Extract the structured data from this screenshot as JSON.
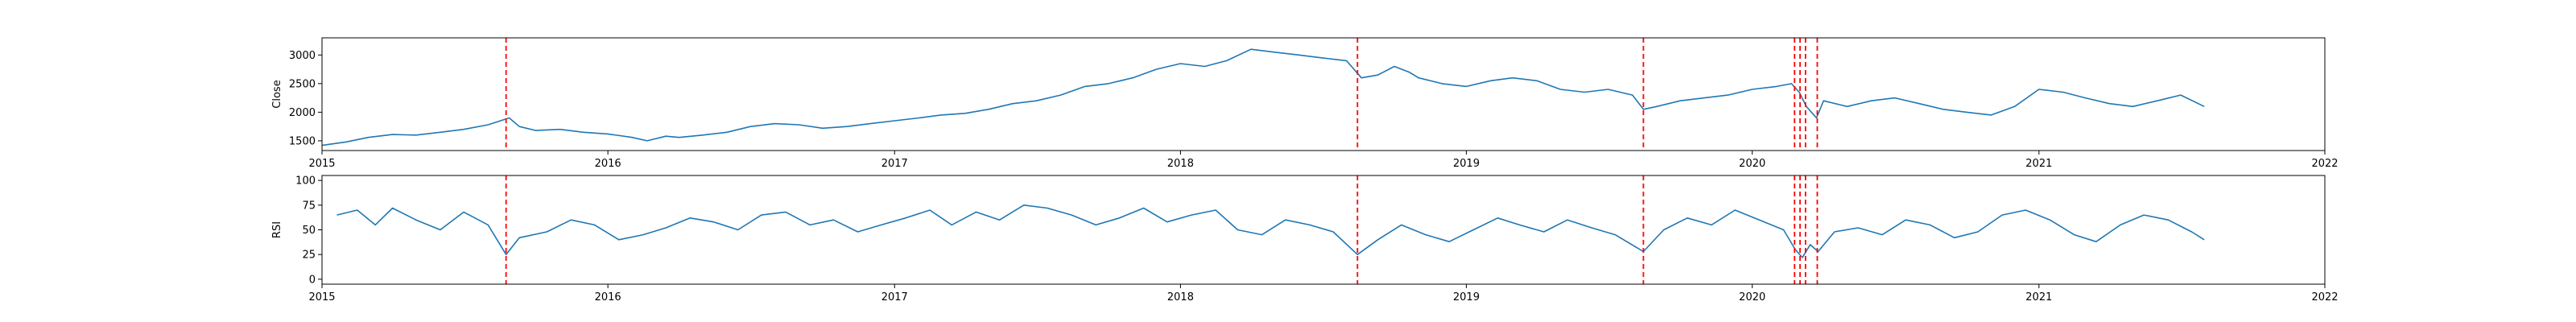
{
  "colors": {
    "series": "#1f77b4",
    "events": "#ff0000",
    "axes": "#000000",
    "background": "#ffffff"
  },
  "chart_data": [
    {
      "type": "line",
      "title": "",
      "xlabel": "",
      "ylabel": "Close",
      "xlim": [
        "2015-01-01",
        "2022-01-01"
      ],
      "ylim": [
        1330,
        3300
      ],
      "x_ticks": [
        "2015",
        "2016",
        "2017",
        "2018",
        "2019",
        "2020",
        "2021",
        "2022"
      ],
      "y_ticks": [
        1500,
        2000,
        2500,
        3000
      ],
      "grid": false,
      "series": [
        {
          "x": [
            "2015-01-01",
            "2015-02-01",
            "2015-03-01",
            "2015-04-01",
            "2015-05-01",
            "2015-06-01",
            "2015-07-01",
            "2015-08-01",
            "2015-08-28",
            "2015-09-10",
            "2015-10-01",
            "2015-11-01",
            "2015-12-01",
            "2016-01-01",
            "2016-02-01",
            "2016-02-20",
            "2016-03-15",
            "2016-04-01",
            "2016-05-01",
            "2016-06-01",
            "2016-07-01",
            "2016-08-01",
            "2016-09-01",
            "2016-10-01",
            "2016-11-01",
            "2016-12-01",
            "2017-01-01",
            "2017-02-01",
            "2017-03-01",
            "2017-04-01",
            "2017-05-01",
            "2017-06-01",
            "2017-07-01",
            "2017-08-01",
            "2017-09-01",
            "2017-10-01",
            "2017-11-01",
            "2017-12-01",
            "2018-01-01",
            "2018-02-01",
            "2018-03-01",
            "2018-04-01",
            "2018-05-01",
            "2018-06-01",
            "2018-07-01",
            "2018-08-01",
            "2018-08-20",
            "2018-09-10",
            "2018-10-01",
            "2018-10-20",
            "2018-11-01",
            "2018-12-01",
            "2019-01-01",
            "2019-02-01",
            "2019-03-01",
            "2019-04-01",
            "2019-05-01",
            "2019-06-01",
            "2019-07-01",
            "2019-08-01",
            "2019-08-15",
            "2019-09-01",
            "2019-10-01",
            "2019-11-01",
            "2019-12-01",
            "2020-01-01",
            "2020-02-01",
            "2020-02-20",
            "2020-03-01",
            "2020-03-10",
            "2020-03-23",
            "2020-04-01",
            "2020-05-01",
            "2020-06-01",
            "2020-07-01",
            "2020-08-01",
            "2020-09-01",
            "2020-10-01",
            "2020-11-01",
            "2020-12-01",
            "2021-01-01",
            "2021-02-01",
            "2021-03-01",
            "2021-04-01",
            "2021-05-01",
            "2021-06-01",
            "2021-07-01",
            "2021-07-31"
          ],
          "y": [
            1420,
            1480,
            1560,
            1610,
            1600,
            1650,
            1700,
            1780,
            1900,
            1750,
            1680,
            1700,
            1650,
            1620,
            1560,
            1500,
            1580,
            1560,
            1600,
            1650,
            1750,
            1800,
            1780,
            1720,
            1750,
            1800,
            1850,
            1900,
            1950,
            1980,
            2050,
            2150,
            2200,
            2300,
            2450,
            2500,
            2600,
            2750,
            2850,
            2800,
            2900,
            3100,
            3050,
            3000,
            2950,
            2900,
            2600,
            2650,
            2800,
            2700,
            2600,
            2500,
            2450,
            2550,
            2600,
            2550,
            2400,
            2350,
            2400,
            2300,
            2050,
            2100,
            2200,
            2250,
            2300,
            2400,
            2450,
            2500,
            2350,
            2100,
            1900,
            2200,
            2100,
            2200,
            2250,
            2150,
            2050,
            2000,
            1950,
            2100,
            2400,
            2350,
            2250,
            2150,
            2100,
            2200,
            2300,
            2100
          ]
        }
      ],
      "event_lines": [
        "2015-08-24",
        "2018-08-15",
        "2019-08-15",
        "2020-02-24",
        "2020-03-02",
        "2020-03-09",
        "2020-03-24"
      ]
    },
    {
      "type": "line",
      "title": "",
      "xlabel": "",
      "ylabel": "RSI",
      "xlim": [
        "2015-01-01",
        "2022-01-01"
      ],
      "ylim": [
        -5,
        105
      ],
      "x_ticks": [
        "2015",
        "2016",
        "2017",
        "2018",
        "2019",
        "2020",
        "2021",
        "2022"
      ],
      "y_ticks": [
        0,
        25,
        50,
        75,
        100
      ],
      "grid": false,
      "series": [
        {
          "x": [
            "2015-01-20",
            "2015-02-15",
            "2015-03-10",
            "2015-04-01",
            "2015-05-01",
            "2015-06-01",
            "2015-07-01",
            "2015-08-01",
            "2015-08-24",
            "2015-09-10",
            "2015-10-15",
            "2015-11-15",
            "2015-12-15",
            "2016-01-15",
            "2016-02-15",
            "2016-03-15",
            "2016-04-15",
            "2016-05-15",
            "2016-06-15",
            "2016-07-15",
            "2016-08-15",
            "2016-09-15",
            "2016-10-15",
            "2016-11-15",
            "2016-12-15",
            "2017-01-15",
            "2017-02-15",
            "2017-03-15",
            "2017-04-15",
            "2017-05-15",
            "2017-06-15",
            "2017-07-15",
            "2017-08-15",
            "2017-09-15",
            "2017-10-15",
            "2017-11-15",
            "2017-12-15",
            "2018-01-15",
            "2018-02-15",
            "2018-03-15",
            "2018-04-15",
            "2018-05-15",
            "2018-06-15",
            "2018-07-15",
            "2018-08-15",
            "2018-09-10",
            "2018-10-10",
            "2018-11-10",
            "2018-12-10",
            "2019-01-10",
            "2019-02-10",
            "2019-03-10",
            "2019-04-10",
            "2019-05-10",
            "2019-06-10",
            "2019-07-10",
            "2019-08-15",
            "2019-09-10",
            "2019-10-10",
            "2019-11-10",
            "2019-12-10",
            "2020-01-10",
            "2020-02-10",
            "2020-02-25",
            "2020-03-05",
            "2020-03-15",
            "2020-03-25",
            "2020-04-15",
            "2020-05-15",
            "2020-06-15",
            "2020-07-15",
            "2020-08-15",
            "2020-09-15",
            "2020-10-15",
            "2020-11-15",
            "2020-12-15",
            "2021-01-15",
            "2021-02-15",
            "2021-03-15",
            "2021-04-15",
            "2021-05-15",
            "2021-06-15",
            "2021-07-15",
            "2021-07-31"
          ],
          "y": [
            65,
            70,
            55,
            72,
            60,
            50,
            68,
            55,
            25,
            42,
            48,
            60,
            55,
            40,
            45,
            52,
            62,
            58,
            50,
            65,
            68,
            55,
            60,
            48,
            55,
            62,
            70,
            55,
            68,
            60,
            75,
            72,
            65,
            55,
            62,
            72,
            58,
            65,
            70,
            50,
            45,
            60,
            55,
            48,
            25,
            40,
            55,
            45,
            38,
            50,
            62,
            55,
            48,
            60,
            52,
            45,
            28,
            50,
            62,
            55,
            70,
            60,
            50,
            30,
            22,
            35,
            28,
            48,
            52,
            45,
            60,
            55,
            42,
            48,
            65,
            70,
            60,
            45,
            38,
            55,
            65,
            60,
            48,
            40
          ]
        }
      ],
      "event_lines": [
        "2015-08-24",
        "2018-08-15",
        "2019-08-15",
        "2020-02-24",
        "2020-03-02",
        "2020-03-09",
        "2020-03-24"
      ]
    }
  ]
}
